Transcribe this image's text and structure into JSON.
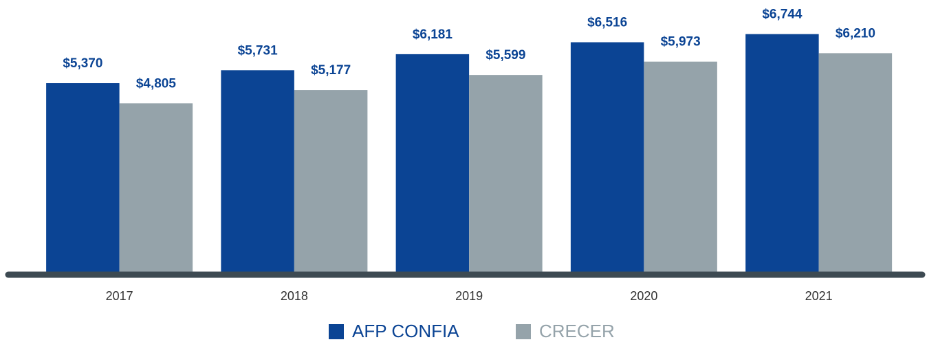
{
  "chart_data": {
    "type": "bar",
    "categories": [
      "2017",
      "2018",
      "2019",
      "2020",
      "2021"
    ],
    "series": [
      {
        "name": "AFP CONFIA",
        "color": "#0b4494",
        "values": [
          5370,
          5731,
          6181,
          6516,
          6744
        ],
        "value_labels": [
          "$5,370",
          "$5,731",
          "$6,181",
          "$6,516",
          "$6,744"
        ]
      },
      {
        "name": "CRECER",
        "color": "#95a3aa",
        "values": [
          4805,
          5177,
          5599,
          5973,
          6210
        ],
        "value_labels": [
          "$4,805",
          "$5,177",
          "$5,599",
          "$5,973",
          "$6,210"
        ]
      }
    ],
    "ylim": [
      0,
      7700
    ],
    "legend": "bottom"
  }
}
